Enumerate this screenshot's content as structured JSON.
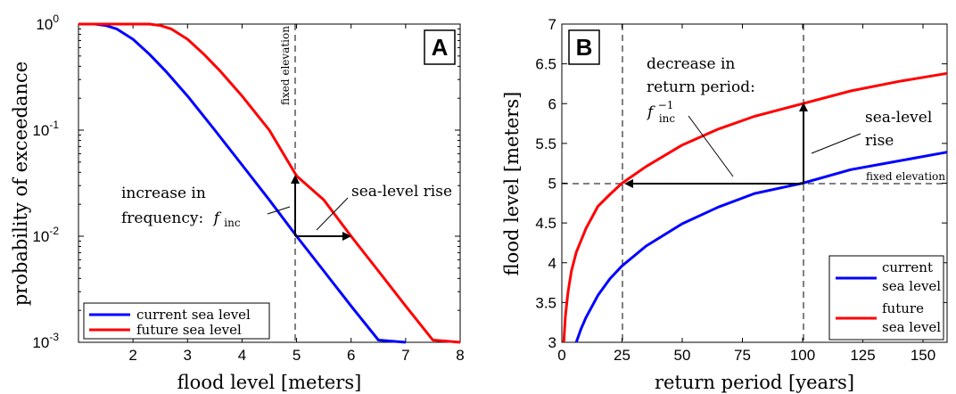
{
  "chart_data": [
    {
      "type": "line",
      "panel_label": "A",
      "xlabel": "flood level [meters]",
      "ylabel": "probability of exceedance",
      "xlim": [
        1,
        8
      ],
      "ylim": [
        0.001,
        1
      ],
      "yscale": "log",
      "xticks": [
        "2",
        "3",
        "4",
        "5",
        "6",
        "7",
        "8"
      ],
      "yticks": [
        {
          "base": "10",
          "exp": "0"
        },
        {
          "base": "10",
          "exp": "-1"
        },
        {
          "base": "10",
          "exp": "-2"
        },
        {
          "base": "10",
          "exp": "-3"
        }
      ],
      "series": [
        {
          "name": "current sea level",
          "color": "#0000ff",
          "x": [
            1.0,
            1.3,
            1.5,
            1.7,
            2.0,
            2.3,
            2.6,
            3.0,
            3.5,
            4.0,
            4.5,
            5.0,
            5.5,
            6.0,
            6.5,
            7.0
          ],
          "y": [
            1.0,
            1.0,
            0.97,
            0.9,
            0.72,
            0.52,
            0.36,
            0.21,
            0.1,
            0.047,
            0.022,
            0.01,
            0.0047,
            0.0022,
            0.00105,
            0.001
          ]
        },
        {
          "name": "future sea level",
          "color": "#ff0000",
          "x": [
            1.0,
            2.0,
            2.3,
            2.5,
            2.7,
            3.0,
            3.3,
            3.6,
            4.0,
            4.5,
            5.0,
            5.5,
            6.0,
            6.5,
            7.0,
            7.5,
            8.0
          ],
          "y": [
            1.0,
            1.0,
            1.0,
            0.97,
            0.9,
            0.72,
            0.52,
            0.36,
            0.21,
            0.1,
            0.037,
            0.022,
            0.01,
            0.0047,
            0.0022,
            0.00105,
            0.001
          ]
        }
      ],
      "annotations": {
        "fixed_elevation": "fixed elevation",
        "increase_line1": "increase in",
        "increase_line2": "frequency:",
        "f_inc": "f",
        "f_inc_sub": "inc",
        "sea_level_rise": "sea-level rise"
      },
      "legend_position": "bottom-left"
    },
    {
      "type": "line",
      "panel_label": "B",
      "xlabel": "return period [years]",
      "ylabel": "flood level [meters]",
      "xlim": [
        0,
        160
      ],
      "ylim": [
        3,
        7
      ],
      "xticks": [
        "0",
        "25",
        "50",
        "75",
        "100",
        "125",
        "150"
      ],
      "yticks": [
        "3",
        "3.5",
        "4",
        "4.5",
        "5",
        "5.5",
        "6",
        "6.5",
        "7"
      ],
      "series": [
        {
          "name": "current sea level",
          "color": "#0000ff",
          "x": [
            6,
            8,
            10,
            15,
            20,
            25,
            35,
            50,
            65,
            80,
            100,
            120,
            140,
            160
          ],
          "y": [
            3.0,
            3.17,
            3.31,
            3.59,
            3.8,
            3.96,
            4.21,
            4.49,
            4.7,
            4.87,
            5.0,
            5.17,
            5.28,
            5.39
          ]
        },
        {
          "name": "future sea level",
          "color": "#ff0000",
          "x": [
            0.8,
            1.5,
            2.5,
            4,
            6,
            10,
            15,
            20,
            25,
            35,
            50,
            65,
            80,
            100,
            120,
            140,
            160
          ],
          "y": [
            3.0,
            3.33,
            3.62,
            3.9,
            4.13,
            4.43,
            4.71,
            4.86,
            5.0,
            5.21,
            5.48,
            5.68,
            5.84,
            6.0,
            6.16,
            6.28,
            6.38
          ]
        }
      ],
      "annotations": {
        "fixed_elevation": "fixed elevation",
        "decrease_line1": "decrease in",
        "decrease_line2": "return period:",
        "f_inc": "f",
        "f_inc_sub": "inc",
        "f_inc_sup": "−1",
        "sea_level_line1": "sea-level",
        "sea_level_line2": "rise"
      },
      "legend_position": "bottom-right",
      "legend_lines": [
        [
          "current",
          "sea level"
        ],
        [
          "future",
          "sea level"
        ]
      ]
    }
  ]
}
